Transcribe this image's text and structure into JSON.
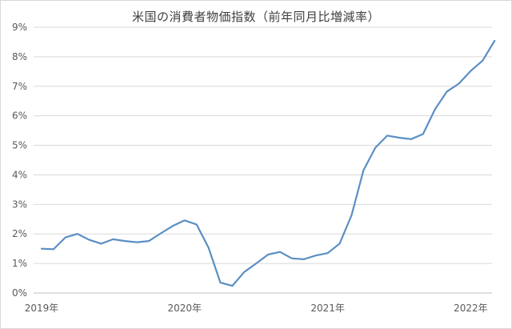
{
  "chart_data": {
    "type": "line",
    "title": "米国の消費者物価指数（前年同月比増減率）",
    "xlabel": "",
    "ylabel": "",
    "ylim": [
      0,
      9
    ],
    "y_ticks": [
      "0%",
      "1%",
      "2%",
      "3%",
      "4%",
      "5%",
      "6%",
      "7%",
      "8%",
      "9%"
    ],
    "x_ticks": [
      "2019年",
      "2020年",
      "2021年",
      "2022年"
    ],
    "grid": true,
    "legend": "none",
    "series": [
      {
        "color": "#5b8fc3",
        "x": [
          "2019-01",
          "2019-02",
          "2019-03",
          "2019-04",
          "2019-05",
          "2019-06",
          "2019-07",
          "2019-08",
          "2019-09",
          "2019-10",
          "2019-11",
          "2019-12",
          "2020-01",
          "2020-02",
          "2020-03",
          "2020-04",
          "2020-05",
          "2020-06",
          "2020-07",
          "2020-08",
          "2020-09",
          "2020-10",
          "2020-11",
          "2020-12",
          "2021-01",
          "2021-02",
          "2021-03",
          "2021-04",
          "2021-05",
          "2021-06",
          "2021-07",
          "2021-08",
          "2021-09",
          "2021-10",
          "2021-11",
          "2021-12",
          "2022-01",
          "2022-02",
          "2022-03"
        ],
        "values": [
          1.5,
          1.48,
          1.88,
          2.0,
          1.8,
          1.67,
          1.82,
          1.76,
          1.72,
          1.76,
          2.02,
          2.27,
          2.46,
          2.32,
          1.54,
          0.35,
          0.24,
          0.71,
          1.0,
          1.3,
          1.39,
          1.17,
          1.14,
          1.27,
          1.35,
          1.67,
          2.63,
          4.15,
          4.92,
          5.33,
          5.26,
          5.21,
          5.38,
          6.22,
          6.82,
          7.09,
          7.52,
          7.87,
          8.54
        ]
      }
    ]
  }
}
